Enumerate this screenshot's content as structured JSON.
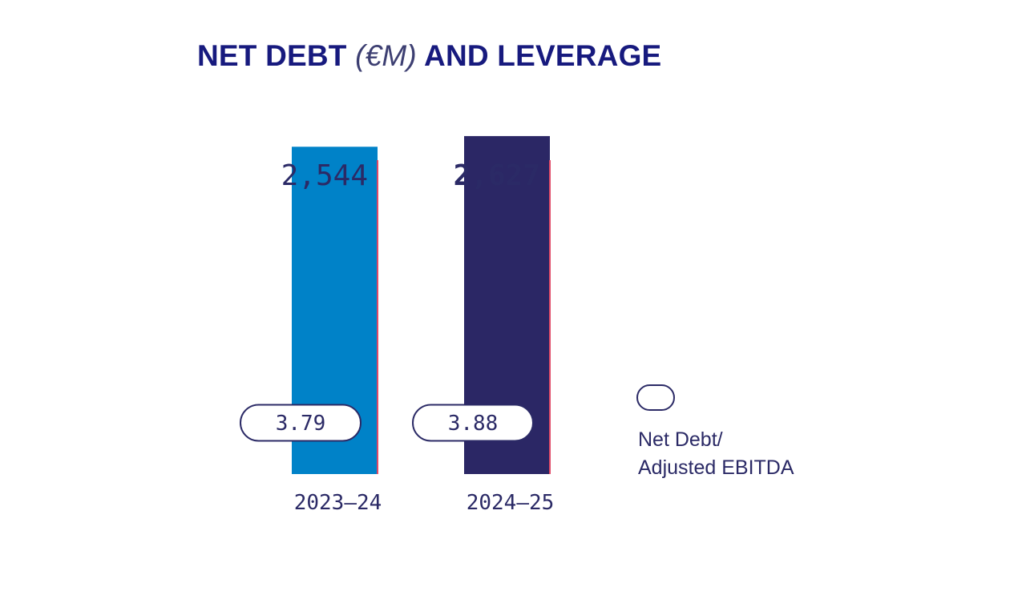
{
  "colors": {
    "title": "#171a7e",
    "text": "#2b2a66",
    "accent_line": "#e04a67",
    "pill_border": "#2b2a66",
    "pill_fill": "#ffffff",
    "background": "#ffffff"
  },
  "chart_data": {
    "type": "bar",
    "title_main": "NET DEBT",
    "title_unit": "(€M)",
    "title_tail": "AND LEVERAGE",
    "categories": [
      "2023–24",
      "2024–25"
    ],
    "series": [
      {
        "name": "Net Debt",
        "values": [
          2544,
          2627
        ],
        "value_labels": [
          "2,544",
          "2,627"
        ],
        "colors": [
          "#0082c8",
          "#2b2765"
        ],
        "label_weights": [
          "normal",
          "bold"
        ]
      },
      {
        "name": "Net Debt/ Adjusted EBITDA",
        "values": [
          3.79,
          3.88
        ],
        "value_labels": [
          "3.79",
          "3.88"
        ]
      }
    ],
    "ylim": [
      0,
      3000
    ],
    "grid": false,
    "legend": {
      "position": "right",
      "label_lines": [
        "Net Debt/",
        "Adjusted EBITDA"
      ],
      "marker": "pill-outline"
    }
  }
}
